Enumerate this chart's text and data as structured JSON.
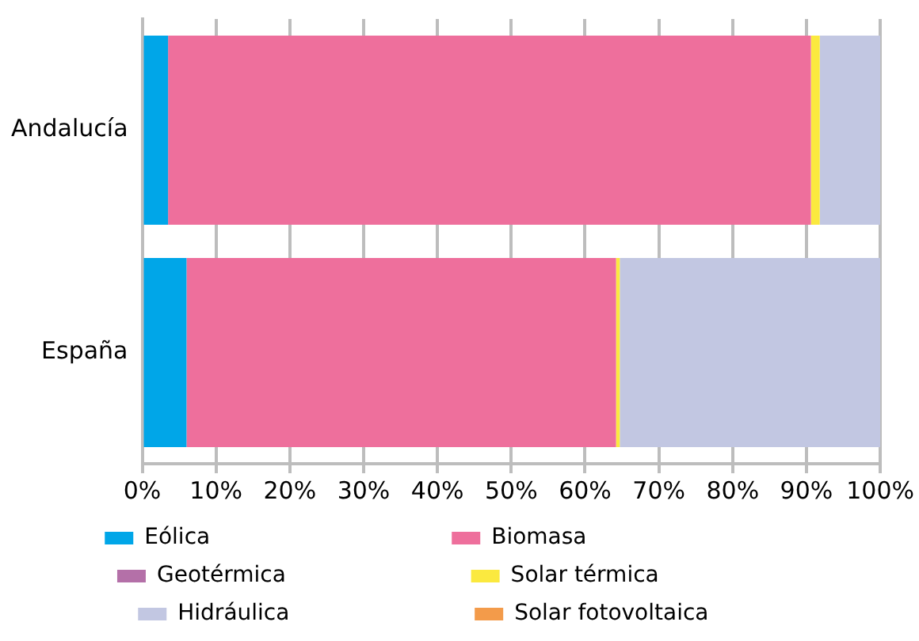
{
  "chart_data": {
    "type": "bar",
    "orientation": "horizontal",
    "stacked": true,
    "categories": [
      "Andalucía",
      "España"
    ],
    "series": [
      {
        "name": "Eólica",
        "color": "#00a6e8",
        "values": [
          3.5,
          6.0
        ]
      },
      {
        "name": "Biomasa",
        "color": "#ee6f9c",
        "values": [
          87.1,
          58.2
        ]
      },
      {
        "name": "Geotérmica",
        "color": "#b470a8",
        "values": [
          0,
          0
        ]
      },
      {
        "name": "Solar térmica",
        "color": "#fbe93f",
        "values": [
          1.2,
          0.5
        ]
      },
      {
        "name": "Hidráulica",
        "color": "#c2c7e2",
        "values": [
          8.2,
          35.3
        ]
      },
      {
        "name": "Solar fotovoltaica",
        "color": "#f39b4a",
        "values": [
          0,
          0
        ]
      }
    ],
    "xlim": [
      0,
      100
    ],
    "xticks": [
      {
        "value": 0,
        "label": "0%"
      },
      {
        "value": 10,
        "label": "10%"
      },
      {
        "value": 20,
        "label": "20%"
      },
      {
        "value": 30,
        "label": "30%"
      },
      {
        "value": 40,
        "label": "40%"
      },
      {
        "value": 50,
        "label": "50%"
      },
      {
        "value": 60,
        "label": "60%"
      },
      {
        "value": 70,
        "label": "70%"
      },
      {
        "value": 80,
        "label": "80%"
      },
      {
        "value": 90,
        "label": "90%"
      },
      {
        "value": 100,
        "label": "100%"
      }
    ],
    "grid": "x",
    "legend": "bottom"
  }
}
